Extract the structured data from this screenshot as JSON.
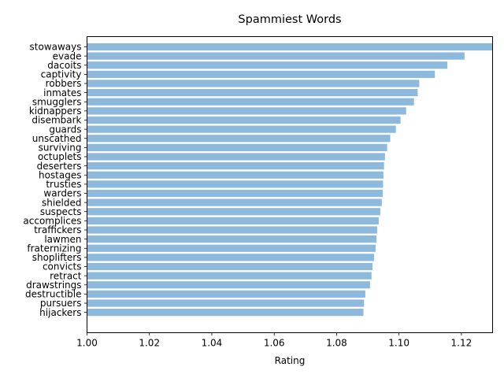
{
  "chart_data": {
    "type": "bar",
    "orientation": "horizontal",
    "title": "Spammiest Words",
    "xlabel": "Rating",
    "ylabel": "",
    "xlim": [
      1.0,
      1.13
    ],
    "xticks": [
      "1.00",
      "1.02",
      "1.04",
      "1.06",
      "1.08",
      "1.10",
      "1.12"
    ],
    "bar_color": "#8cb9dc",
    "grid": false,
    "categories": [
      "stowaways",
      "evade",
      "dacoits",
      "captivity",
      "robbers",
      "inmates",
      "smugglers",
      "kidnappers",
      "disembark",
      "guards",
      "unscathed",
      "surviving",
      "octuplets",
      "deserters",
      "hostages",
      "trusties",
      "warders",
      "shielded",
      "suspects",
      "accomplices",
      "traffickers",
      "lawmen",
      "fraternizing",
      "shoplifters",
      "convicts",
      "retract",
      "drawstrings",
      "destructible",
      "pursuers",
      "hijackers"
    ],
    "values": [
      1.131,
      1.121,
      1.1155,
      1.1115,
      1.1065,
      1.106,
      1.1048,
      1.1023,
      1.1005,
      1.099,
      1.0972,
      1.0962,
      1.0955,
      1.0952,
      1.095,
      1.0949,
      1.0948,
      1.0945,
      1.094,
      1.0935,
      1.093,
      1.0928,
      1.0925,
      1.092,
      1.0915,
      1.0912,
      1.0907,
      1.0892,
      1.0888,
      1.0886
    ]
  }
}
